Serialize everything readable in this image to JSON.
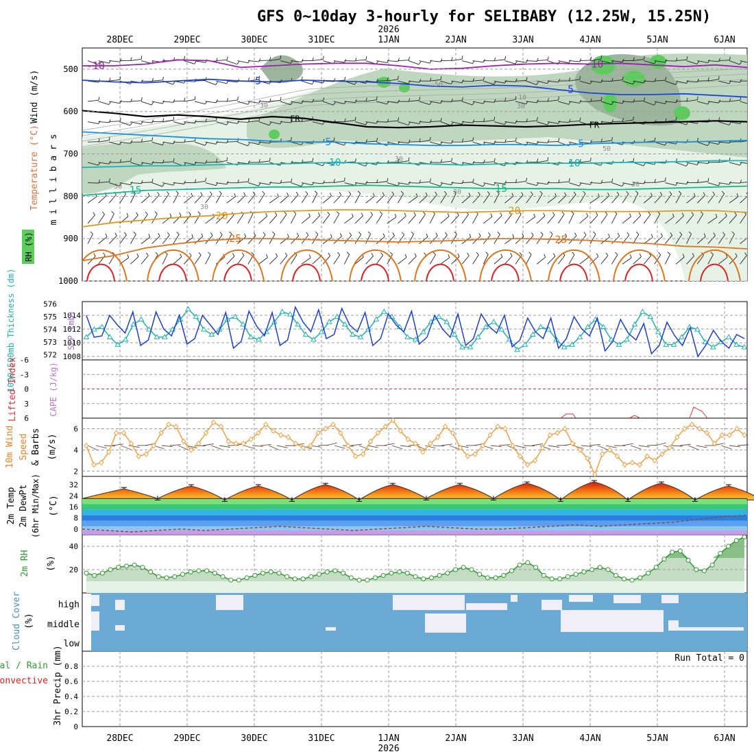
{
  "title": "GFS 0~10day 3-hourly for SELIBABY (12.25W, 15.25N)",
  "time_axis": {
    "year_label": "2026",
    "dates": [
      "28DEC",
      "29DEC",
      "30DEC",
      "31DEC",
      "1JAN",
      "2JAN",
      "3JAN",
      "4JAN",
      "5JAN",
      "6JAN"
    ],
    "start": "27DEC 12Z",
    "end": "6JAN 06Z",
    "step_hours": 3
  },
  "colors": {
    "grid": "#9a9a9a",
    "rh_light": "#e6f2e6",
    "rh_mid": "#bfd6bf",
    "rh_dark": "#9db59d",
    "rh_green": "#5ccd5c",
    "temp_10": "#9b1fb0",
    "temp_5": "#1f45d6",
    "temp_fr": "#000000",
    "temp_p5": "#1b8fe0",
    "temp_p10": "#17b5b5",
    "temp_p15": "#15b88a",
    "temp_p20": "#d99a1f",
    "temp_p25": "#e07418",
    "temp_p30": "#e02020",
    "slp": "#1a3fd0",
    "thickness": "#1fb0b0",
    "wind10m": "#f0a040",
    "rh2m": "#2e9a2e",
    "cloud": "#6aaad4",
    "lifted": "#e03030"
  },
  "chart_data": [
    {
      "type": "heatmap",
      "name": "cross-section",
      "ylabel_parts": [
        "Wind (m/s)",
        "Temperature (°C)",
        "RH (%)"
      ],
      "ylabel_unit": "millibars",
      "rh_legend": "RH (%)",
      "y_ticks": [
        500,
        600,
        700,
        800,
        900,
        1000
      ],
      "ylim": [
        450,
        1000
      ],
      "isotherms": [
        {
          "label": "-10",
          "color_key": "temp_10",
          "labels_at": [
            0.02,
            0.77
          ],
          "values": [
            492,
            492,
            488,
            478,
            480,
            496,
            492,
            488,
            486,
            486,
            492,
            500,
            498,
            492,
            488,
            486,
            488,
            486,
            490,
            494,
            490,
            496
          ]
        },
        {
          "label": "-5",
          "color_key": "temp_5",
          "labels_at": [
            0.26,
            0.73
          ],
          "values": [
            526,
            530,
            532,
            528,
            524,
            528,
            530,
            526,
            528,
            530,
            534,
            540,
            542,
            538,
            540,
            548,
            556,
            560,
            560,
            558,
            562,
            566
          ]
        },
        {
          "label": "FR",
          "color_key": "temp_fr",
          "labels_at": [
            0.32,
            0.77
          ],
          "values": [
            598,
            604,
            612,
            608,
            612,
            618,
            612,
            616,
            626,
            636,
            638,
            636,
            632,
            634,
            636,
            634,
            630,
            628,
            626,
            624,
            622,
            624
          ]
        },
        {
          "label": "5",
          "color_key": "temp_p5",
          "labels_at": [
            0.37,
            0.75
          ],
          "values": [
            648,
            652,
            656,
            660,
            664,
            666,
            670,
            672,
            672,
            676,
            678,
            680,
            680,
            678,
            678,
            680,
            676,
            674,
            672,
            672,
            670,
            668
          ]
        },
        {
          "label": "10",
          "color_key": "temp_p10",
          "labels_at": [
            0.38,
            0.74
          ],
          "values": [
            732,
            730,
            728,
            728,
            726,
            724,
            724,
            722,
            720,
            722,
            722,
            724,
            726,
            724,
            722,
            722,
            722,
            720,
            720,
            718,
            716,
            716
          ]
        },
        {
          "label": "15",
          "color_key": "temp_p15",
          "labels_at": [
            0.08,
            0.63
          ],
          "values": [
            798,
            792,
            786,
            784,
            782,
            780,
            778,
            778,
            776,
            774,
            776,
            778,
            780,
            782,
            782,
            782,
            784,
            784,
            782,
            780,
            778,
            776
          ]
        },
        {
          "label": "20",
          "color_key": "temp_p20",
          "labels_at": [
            0.21,
            0.65
          ],
          "values": [
            872,
            862,
            856,
            850,
            846,
            840,
            836,
            834,
            832,
            832,
            834,
            836,
            838,
            836,
            834,
            834,
            836,
            836,
            836,
            834,
            834,
            838
          ]
        },
        {
          "label": "25",
          "color_key": "temp_p25",
          "labels_at": [
            0.23,
            0.72
          ],
          "values": [
            952,
            940,
            922,
            912,
            904,
            900,
            900,
            902,
            904,
            906,
            908,
            906,
            904,
            900,
            900,
            902,
            904,
            908,
            912,
            918,
            920,
            924
          ]
        }
      ],
      "rh_contour_labels": [
        "50",
        "30",
        "10"
      ]
    },
    {
      "type": "line",
      "name": "slp-thickness",
      "ylabels": [
        "1000~500mb Thickness (dm)",
        "SLP (mb)"
      ],
      "left_ticks": [
        572,
        573,
        574,
        575,
        576
      ],
      "right_ticks": [
        1008,
        1010,
        1012,
        1014
      ],
      "series": [
        {
          "name": "SLP (mb)",
          "color_key": "slp",
          "ylim": [
            1007.5,
            1016
          ],
          "values": [
            1014,
            1010.8,
            1011,
            1014,
            1012.6,
            1011.4,
            1014.5,
            1009.6,
            1010.4,
            1014.5,
            1012,
            1011,
            1014,
            1009.8,
            1010.6,
            1014,
            1012.6,
            1011.2,
            1014.4,
            1009.2,
            1010.2,
            1014.6,
            1012.4,
            1011,
            1014.4,
            1009.6,
            1010.4,
            1015.2,
            1013,
            1011.6,
            1014.8,
            1010.6,
            1011.2,
            1015,
            1012.6,
            1011.6,
            1014.4,
            1009.6,
            1010.6,
            1014.2,
            1012.6,
            1011.6,
            1014.6,
            1009.8,
            1010.8,
            1014,
            1012,
            1010.8,
            1014.2,
            1009.6,
            1010.6,
            1014.2,
            1012.4,
            1011.4,
            1014,
            1009.4,
            1010.4,
            1013.6,
            1011.6,
            1010.6,
            1013.6,
            1009.2,
            1010.6,
            1013.8,
            1012,
            1011,
            1013.6,
            1008.8,
            1010.2,
            1013.4,
            1011.4,
            1010.4,
            1012.8,
            1008.4,
            1009.6,
            1013,
            1011,
            1009.6,
            1012.2,
            1008,
            1009.6,
            1011.8,
            1010.2,
            1009.2,
            1011.2,
            1010.6
          ]
        },
        {
          "name": "1000~500mb Thickness (dm)",
          "color_key": "thickness",
          "ylim": [
            571.6,
            576.2
          ],
          "values": [
            573.4,
            574,
            574.2,
            573.4,
            572.8,
            573.2,
            574.4,
            574.8,
            574,
            573.4,
            573.4,
            574,
            574.8,
            575.6,
            575,
            574,
            573.6,
            574,
            574.8,
            575,
            574.4,
            573.4,
            573.2,
            573.8,
            574.6,
            575.4,
            575.2,
            574.4,
            573.6,
            573.2,
            573.8,
            574.6,
            575,
            574.4,
            573.6,
            573.4,
            574,
            574.8,
            575.4,
            575,
            574.2,
            573.4,
            573.2,
            573.8,
            574.6,
            575,
            574.6,
            573.6,
            572.6,
            572.6,
            573.4,
            574.2,
            574.6,
            574,
            573.2,
            572.4,
            572.8,
            573.6,
            574.2,
            574,
            573.2,
            572.6,
            572.8,
            573.4,
            574.2,
            574.8,
            574.2,
            573.2,
            572.8,
            573.2,
            574.4,
            575.4,
            575,
            573.8,
            572.8,
            572.8,
            573.4,
            574.2,
            574,
            573,
            572.6,
            573,
            573.4,
            572.8,
            572.6
          ]
        }
      ]
    },
    {
      "type": "line",
      "name": "cape-lifted",
      "ylabels": [
        "Lifted Index",
        "CAPE (J/kg)"
      ],
      "y_ticks": [
        6,
        3,
        0,
        -3,
        -6
      ],
      "ylim": [
        -6,
        6
      ],
      "series": [
        {
          "name": "Lifted Index",
          "color_key": "lifted",
          "note": "values mostly off-scale above 6; small dips near 4JAN and 5JAN"
        }
      ]
    },
    {
      "type": "line",
      "name": "wind10m",
      "ylabels": [
        "10m Wind",
        "Speed",
        "& Barbs",
        "(m/s)"
      ],
      "y_ticks": [
        2,
        4,
        6
      ],
      "ylim": [
        1.5,
        7
      ],
      "series": [
        {
          "name": "Speed",
          "color_key": "wind10m",
          "values": [
            4.4,
            2.6,
            2.8,
            3.8,
            5.6,
            5.6,
            4.6,
            3.4,
            3.6,
            4.4,
            5.6,
            6.4,
            6.2,
            4.8,
            4.0,
            4.6,
            5.6,
            6.6,
            6.2,
            4.8,
            4.6,
            4.6,
            5.0,
            5.6,
            6.4,
            5.8,
            5.4,
            5.2,
            4.6,
            4.2,
            4.4,
            5.6,
            6.0,
            6.4,
            5.6,
            4.4,
            3.4,
            3.6,
            4.8,
            5.6,
            6.2,
            6.8,
            5.8,
            5.0,
            4.6,
            3.8,
            4.6,
            5.2,
            6.2,
            5.6,
            4.2,
            3.4,
            3.6,
            4.4,
            5.4,
            6.2,
            6.0,
            4.4,
            3.4,
            2.6,
            3.0,
            4.2,
            5.4,
            5.6,
            6.0,
            4.6,
            4.0,
            3.2,
            1.7,
            3.6,
            4.0,
            3.4,
            2.6,
            2.8,
            2.6,
            3.4,
            3.0,
            3.6,
            4.2,
            5.2,
            6.0,
            6.4,
            6.0,
            5.6,
            4.6,
            5.4,
            5.4,
            6.0,
            5.4
          ]
        }
      ]
    },
    {
      "type": "area",
      "name": "temp2m",
      "ylabels": [
        "2m Temp",
        "2m DewPt",
        "(6hr Min/Max)",
        "(°C)"
      ],
      "y_ticks": [
        0,
        8,
        16,
        24,
        32
      ],
      "ylim": [
        -4,
        38
      ],
      "series": [
        {
          "name": "2m Temp",
          "peak_values": [
            29,
            31,
            31,
            32,
            32,
            32,
            33,
            34,
            33,
            31
          ],
          "trough_values": [
            22,
            21,
            21,
            21,
            22,
            22,
            21,
            21,
            21,
            21
          ]
        },
        {
          "name": "2m DewPt",
          "values": [
            0,
            -1,
            -2,
            -1,
            0,
            -1,
            0,
            1,
            2,
            1,
            0,
            -1,
            0,
            1,
            2,
            1,
            0,
            0,
            1,
            2,
            3,
            2,
            3,
            4,
            5,
            7,
            9,
            10
          ]
        }
      ]
    },
    {
      "type": "area",
      "name": "rh2m",
      "ylabels": [
        "2m RH",
        "(%)"
      ],
      "y_ticks": [
        20,
        40
      ],
      "ylim": [
        0,
        50
      ],
      "series": [
        {
          "name": "2m RH",
          "color_key": "rh2m",
          "values": [
            17,
            15,
            17,
            20,
            22,
            23,
            24,
            22,
            18,
            14,
            13,
            14,
            16,
            18,
            19,
            19,
            17,
            14,
            11,
            11,
            13,
            15,
            17,
            18,
            17,
            14,
            12,
            12,
            14,
            16,
            18,
            19,
            17,
            13,
            11,
            11,
            13,
            15,
            17,
            18,
            17,
            14,
            12,
            13,
            15,
            17,
            20,
            22,
            20,
            16,
            13,
            13,
            15,
            19,
            24,
            26,
            22,
            15,
            12,
            12,
            14,
            16,
            18,
            20,
            22,
            20,
            15,
            12,
            11,
            13,
            17,
            22,
            29,
            35,
            36,
            28,
            20,
            19,
            24,
            34,
            40,
            45,
            48
          ]
        }
      ]
    },
    {
      "type": "heatmap",
      "name": "cloud-cover",
      "ylabels": [
        "Cloud Cover",
        "(%)"
      ],
      "rows": [
        "high",
        "middle",
        "low"
      ],
      "note": "high-level cloud present 30DEC and 1JAN-5JAN; middle-level cloud 2JAN and 4JAN-5JAN"
    },
    {
      "type": "bar",
      "name": "precip",
      "ylabels": [
        "Total / Rain",
        "Convective",
        "3hr Precip (mm)"
      ],
      "y_ticks": [
        0,
        0.2,
        0.4,
        0.6,
        0.8
      ],
      "ylim": [
        0,
        1
      ],
      "run_total_label": "Run Total = 0",
      "values": []
    }
  ]
}
